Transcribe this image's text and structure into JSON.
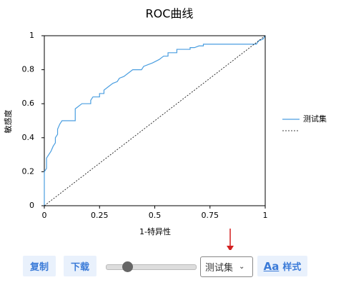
{
  "chart_data": {
    "type": "line",
    "title": "ROC曲线",
    "x_label": "1-特异性",
    "y_label": "敏感度",
    "xlim": [
      0,
      1
    ],
    "ylim": [
      0,
      1
    ],
    "xticks": [
      0,
      0.25,
      0.5,
      0.75,
      1
    ],
    "yticks": [
      0,
      0.2,
      0.4,
      0.6,
      0.8,
      1
    ],
    "series": [
      {
        "name": "测试集",
        "color": "#4a9ee0",
        "x": [
          0,
          0,
          0.01,
          0.01,
          0.02,
          0.03,
          0.04,
          0.05,
          0.05,
          0.06,
          0.06,
          0.07,
          0.08,
          0.14,
          0.14,
          0.17,
          0.21,
          0.21,
          0.22,
          0.25,
          0.25,
          0.27,
          0.27,
          0.29,
          0.31,
          0.33,
          0.34,
          0.36,
          0.38,
          0.4,
          0.44,
          0.45,
          0.47,
          0.49,
          0.52,
          0.54,
          0.56,
          0.56,
          0.6,
          0.6,
          0.66,
          0.66,
          0.68,
          0.7,
          0.72,
          0.72,
          0.96,
          0.97,
          0.99,
          1
        ],
        "values": [
          0,
          0.2,
          0.22,
          0.28,
          0.3,
          0.32,
          0.35,
          0.37,
          0.4,
          0.42,
          0.45,
          0.48,
          0.5,
          0.5,
          0.57,
          0.6,
          0.6,
          0.62,
          0.64,
          0.64,
          0.66,
          0.66,
          0.68,
          0.7,
          0.72,
          0.73,
          0.75,
          0.76,
          0.78,
          0.8,
          0.8,
          0.82,
          0.83,
          0.84,
          0.86,
          0.88,
          0.88,
          0.9,
          0.9,
          0.92,
          0.92,
          0.93,
          0.93,
          0.94,
          0.94,
          0.95,
          0.95,
          0.97,
          0.98,
          1
        ]
      },
      {
        "color": "#000000",
        "dash": true,
        "x": [
          0,
          1
        ],
        "values": [
          0,
          1
        ]
      }
    ]
  },
  "controls": {
    "copy": "复制",
    "download": "下载",
    "select": "测试集",
    "style_icon": "Aa",
    "style": "样式"
  }
}
